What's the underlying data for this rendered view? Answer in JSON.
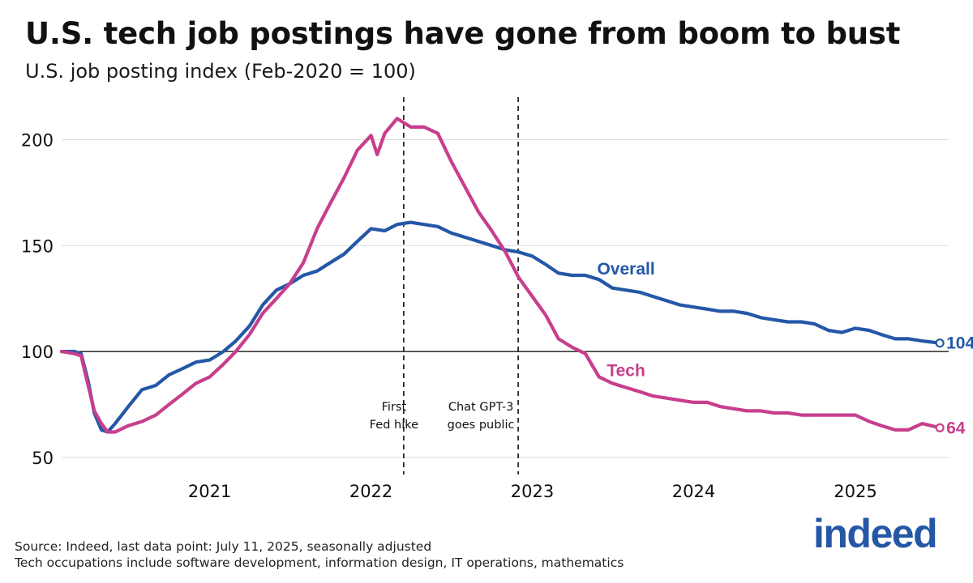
{
  "header": {
    "title": "U.S. tech job postings have gone from boom to bust",
    "subtitle": "U.S. job posting index (Feb-2020 = 100)"
  },
  "footer": {
    "source": "Source: Indeed, last data point: July 11, 2025, seasonally adjusted",
    "note": "Tech occupations include software development, information design, IT operations, mathematics"
  },
  "logo": {
    "text": "indeed",
    "color": "#2557a7"
  },
  "chart_data": {
    "type": "line",
    "title": "U.S. tech job postings have gone from boom to bust",
    "subtitle": "U.S. job posting index (Feb-2020 = 100)",
    "xlabel": "",
    "ylabel": "",
    "xlim": [
      "2020-02-01",
      "2025-07-31"
    ],
    "ylim": [
      45,
      222
    ],
    "yticks": [
      50,
      100,
      150,
      200
    ],
    "ytick_labels": [
      "50",
      "100",
      "150",
      "200"
    ],
    "xtick_labels": [
      {
        "date": "2021-01-01",
        "label": "2021"
      },
      {
        "date": "2022-01-01",
        "label": "2022"
      },
      {
        "date": "2023-01-01",
        "label": "2023"
      },
      {
        "date": "2024-01-01",
        "label": "2024"
      },
      {
        "date": "2025-01-01",
        "label": "2025"
      }
    ],
    "grid": "horizontal",
    "reference_line": {
      "y": 100,
      "color": "#000000"
    },
    "legend": "inline labels",
    "vlines": [
      {
        "date": "2022-03-16",
        "label_lines": [
          "First",
          "Fed hike"
        ]
      },
      {
        "date": "2022-11-30",
        "label_lines": [
          "Chat GPT-3",
          "goes public"
        ]
      }
    ],
    "series": [
      {
        "name": "Overall",
        "color": "#2557a7",
        "end_label": "104",
        "points": [
          [
            "2020-02-01",
            100
          ],
          [
            "2020-03-01",
            100
          ],
          [
            "2020-03-16",
            99
          ],
          [
            "2020-04-01",
            86
          ],
          [
            "2020-04-15",
            71
          ],
          [
            "2020-05-01",
            63
          ],
          [
            "2020-05-15",
            62
          ],
          [
            "2020-06-01",
            66
          ],
          [
            "2020-07-01",
            74
          ],
          [
            "2020-08-01",
            82
          ],
          [
            "2020-09-01",
            84
          ],
          [
            "2020-10-01",
            89
          ],
          [
            "2020-11-01",
            92
          ],
          [
            "2020-12-01",
            95
          ],
          [
            "2021-01-01",
            96
          ],
          [
            "2021-02-01",
            100
          ],
          [
            "2021-03-01",
            105
          ],
          [
            "2021-04-01",
            112
          ],
          [
            "2021-05-01",
            122
          ],
          [
            "2021-06-01",
            129
          ],
          [
            "2021-07-01",
            132
          ],
          [
            "2021-08-01",
            136
          ],
          [
            "2021-09-01",
            138
          ],
          [
            "2021-10-01",
            142
          ],
          [
            "2021-11-01",
            146
          ],
          [
            "2021-12-01",
            152
          ],
          [
            "2022-01-01",
            158
          ],
          [
            "2022-02-01",
            157
          ],
          [
            "2022-03-01",
            160
          ],
          [
            "2022-04-01",
            161
          ],
          [
            "2022-05-01",
            160
          ],
          [
            "2022-06-01",
            159
          ],
          [
            "2022-07-01",
            156
          ],
          [
            "2022-08-01",
            154
          ],
          [
            "2022-09-01",
            152
          ],
          [
            "2022-10-01",
            150
          ],
          [
            "2022-11-01",
            148
          ],
          [
            "2022-12-01",
            147
          ],
          [
            "2023-01-01",
            145
          ],
          [
            "2023-02-01",
            141
          ],
          [
            "2023-03-01",
            137
          ],
          [
            "2023-04-01",
            136
          ],
          [
            "2023-05-01",
            136
          ],
          [
            "2023-06-01",
            134
          ],
          [
            "2023-07-01",
            130
          ],
          [
            "2023-08-01",
            129
          ],
          [
            "2023-09-01",
            128
          ],
          [
            "2023-10-01",
            126
          ],
          [
            "2023-11-01",
            124
          ],
          [
            "2023-12-01",
            122
          ],
          [
            "2024-01-01",
            121
          ],
          [
            "2024-02-01",
            120
          ],
          [
            "2024-03-01",
            119
          ],
          [
            "2024-04-01",
            119
          ],
          [
            "2024-05-01",
            118
          ],
          [
            "2024-06-01",
            116
          ],
          [
            "2024-07-01",
            115
          ],
          [
            "2024-08-01",
            114
          ],
          [
            "2024-09-01",
            114
          ],
          [
            "2024-10-01",
            113
          ],
          [
            "2024-11-01",
            110
          ],
          [
            "2024-12-01",
            109
          ],
          [
            "2025-01-01",
            111
          ],
          [
            "2025-02-01",
            110
          ],
          [
            "2025-03-01",
            108
          ],
          [
            "2025-04-01",
            106
          ],
          [
            "2025-05-01",
            106
          ],
          [
            "2025-06-01",
            105
          ],
          [
            "2025-07-11",
            104
          ]
        ]
      },
      {
        "name": "Tech",
        "color": "#c83e8c",
        "end_label": "64",
        "points": [
          [
            "2020-02-01",
            100
          ],
          [
            "2020-03-01",
            99
          ],
          [
            "2020-03-16",
            98
          ],
          [
            "2020-04-01",
            84
          ],
          [
            "2020-04-15",
            72
          ],
          [
            "2020-05-01",
            66
          ],
          [
            "2020-05-15",
            62
          ],
          [
            "2020-06-01",
            62
          ],
          [
            "2020-07-01",
            65
          ],
          [
            "2020-08-01",
            67
          ],
          [
            "2020-09-01",
            70
          ],
          [
            "2020-10-01",
            75
          ],
          [
            "2020-11-01",
            80
          ],
          [
            "2020-12-01",
            85
          ],
          [
            "2021-01-01",
            88
          ],
          [
            "2021-02-01",
            94
          ],
          [
            "2021-03-01",
            100
          ],
          [
            "2021-04-01",
            108
          ],
          [
            "2021-05-01",
            118
          ],
          [
            "2021-06-01",
            125
          ],
          [
            "2021-07-01",
            132
          ],
          [
            "2021-08-01",
            142
          ],
          [
            "2021-09-01",
            158
          ],
          [
            "2021-10-01",
            170
          ],
          [
            "2021-11-01",
            182
          ],
          [
            "2021-12-01",
            195
          ],
          [
            "2022-01-01",
            202
          ],
          [
            "2022-01-15",
            193
          ],
          [
            "2022-02-01",
            203
          ],
          [
            "2022-03-01",
            210
          ],
          [
            "2022-04-01",
            206
          ],
          [
            "2022-05-01",
            206
          ],
          [
            "2022-06-01",
            203
          ],
          [
            "2022-07-01",
            190
          ],
          [
            "2022-08-01",
            178
          ],
          [
            "2022-09-01",
            166
          ],
          [
            "2022-10-01",
            157
          ],
          [
            "2022-11-01",
            147
          ],
          [
            "2022-12-01",
            135
          ],
          [
            "2023-01-01",
            126
          ],
          [
            "2023-02-01",
            117
          ],
          [
            "2023-03-01",
            106
          ],
          [
            "2023-04-01",
            102
          ],
          [
            "2023-05-01",
            99
          ],
          [
            "2023-06-01",
            88
          ],
          [
            "2023-07-01",
            85
          ],
          [
            "2023-08-01",
            83
          ],
          [
            "2023-09-01",
            81
          ],
          [
            "2023-10-01",
            79
          ],
          [
            "2023-11-01",
            78
          ],
          [
            "2023-12-01",
            77
          ],
          [
            "2024-01-01",
            76
          ],
          [
            "2024-02-01",
            76
          ],
          [
            "2024-03-01",
            74
          ],
          [
            "2024-04-01",
            73
          ],
          [
            "2024-05-01",
            72
          ],
          [
            "2024-06-01",
            72
          ],
          [
            "2024-07-01",
            71
          ],
          [
            "2024-08-01",
            71
          ],
          [
            "2024-09-01",
            70
          ],
          [
            "2024-10-01",
            70
          ],
          [
            "2024-11-01",
            70
          ],
          [
            "2024-12-01",
            70
          ],
          [
            "2025-01-01",
            70
          ],
          [
            "2025-02-01",
            67
          ],
          [
            "2025-03-01",
            65
          ],
          [
            "2025-04-01",
            63
          ],
          [
            "2025-05-01",
            63
          ],
          [
            "2025-06-01",
            66
          ],
          [
            "2025-07-11",
            64
          ]
        ]
      }
    ],
    "annotations": [
      {
        "text": "Overall",
        "series": "Overall",
        "x": "2023-08-01",
        "y": 139
      },
      {
        "text": "Tech",
        "series": "Tech",
        "x": "2023-08-01",
        "y": 91
      }
    ]
  }
}
